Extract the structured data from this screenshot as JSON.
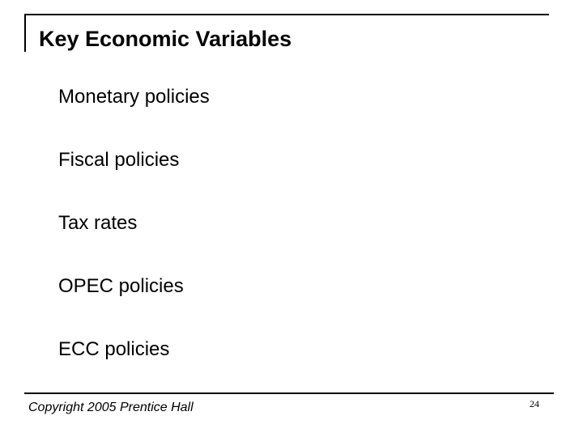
{
  "slide": {
    "title": "Key Economic Variables",
    "bullets": [
      "Monetary policies",
      "Fiscal policies",
      "Tax rates",
      "OPEC policies",
      "ECC policies"
    ],
    "footer": {
      "copyright": "Copyright 2005 Prentice Hall",
      "page_number": "24"
    }
  }
}
